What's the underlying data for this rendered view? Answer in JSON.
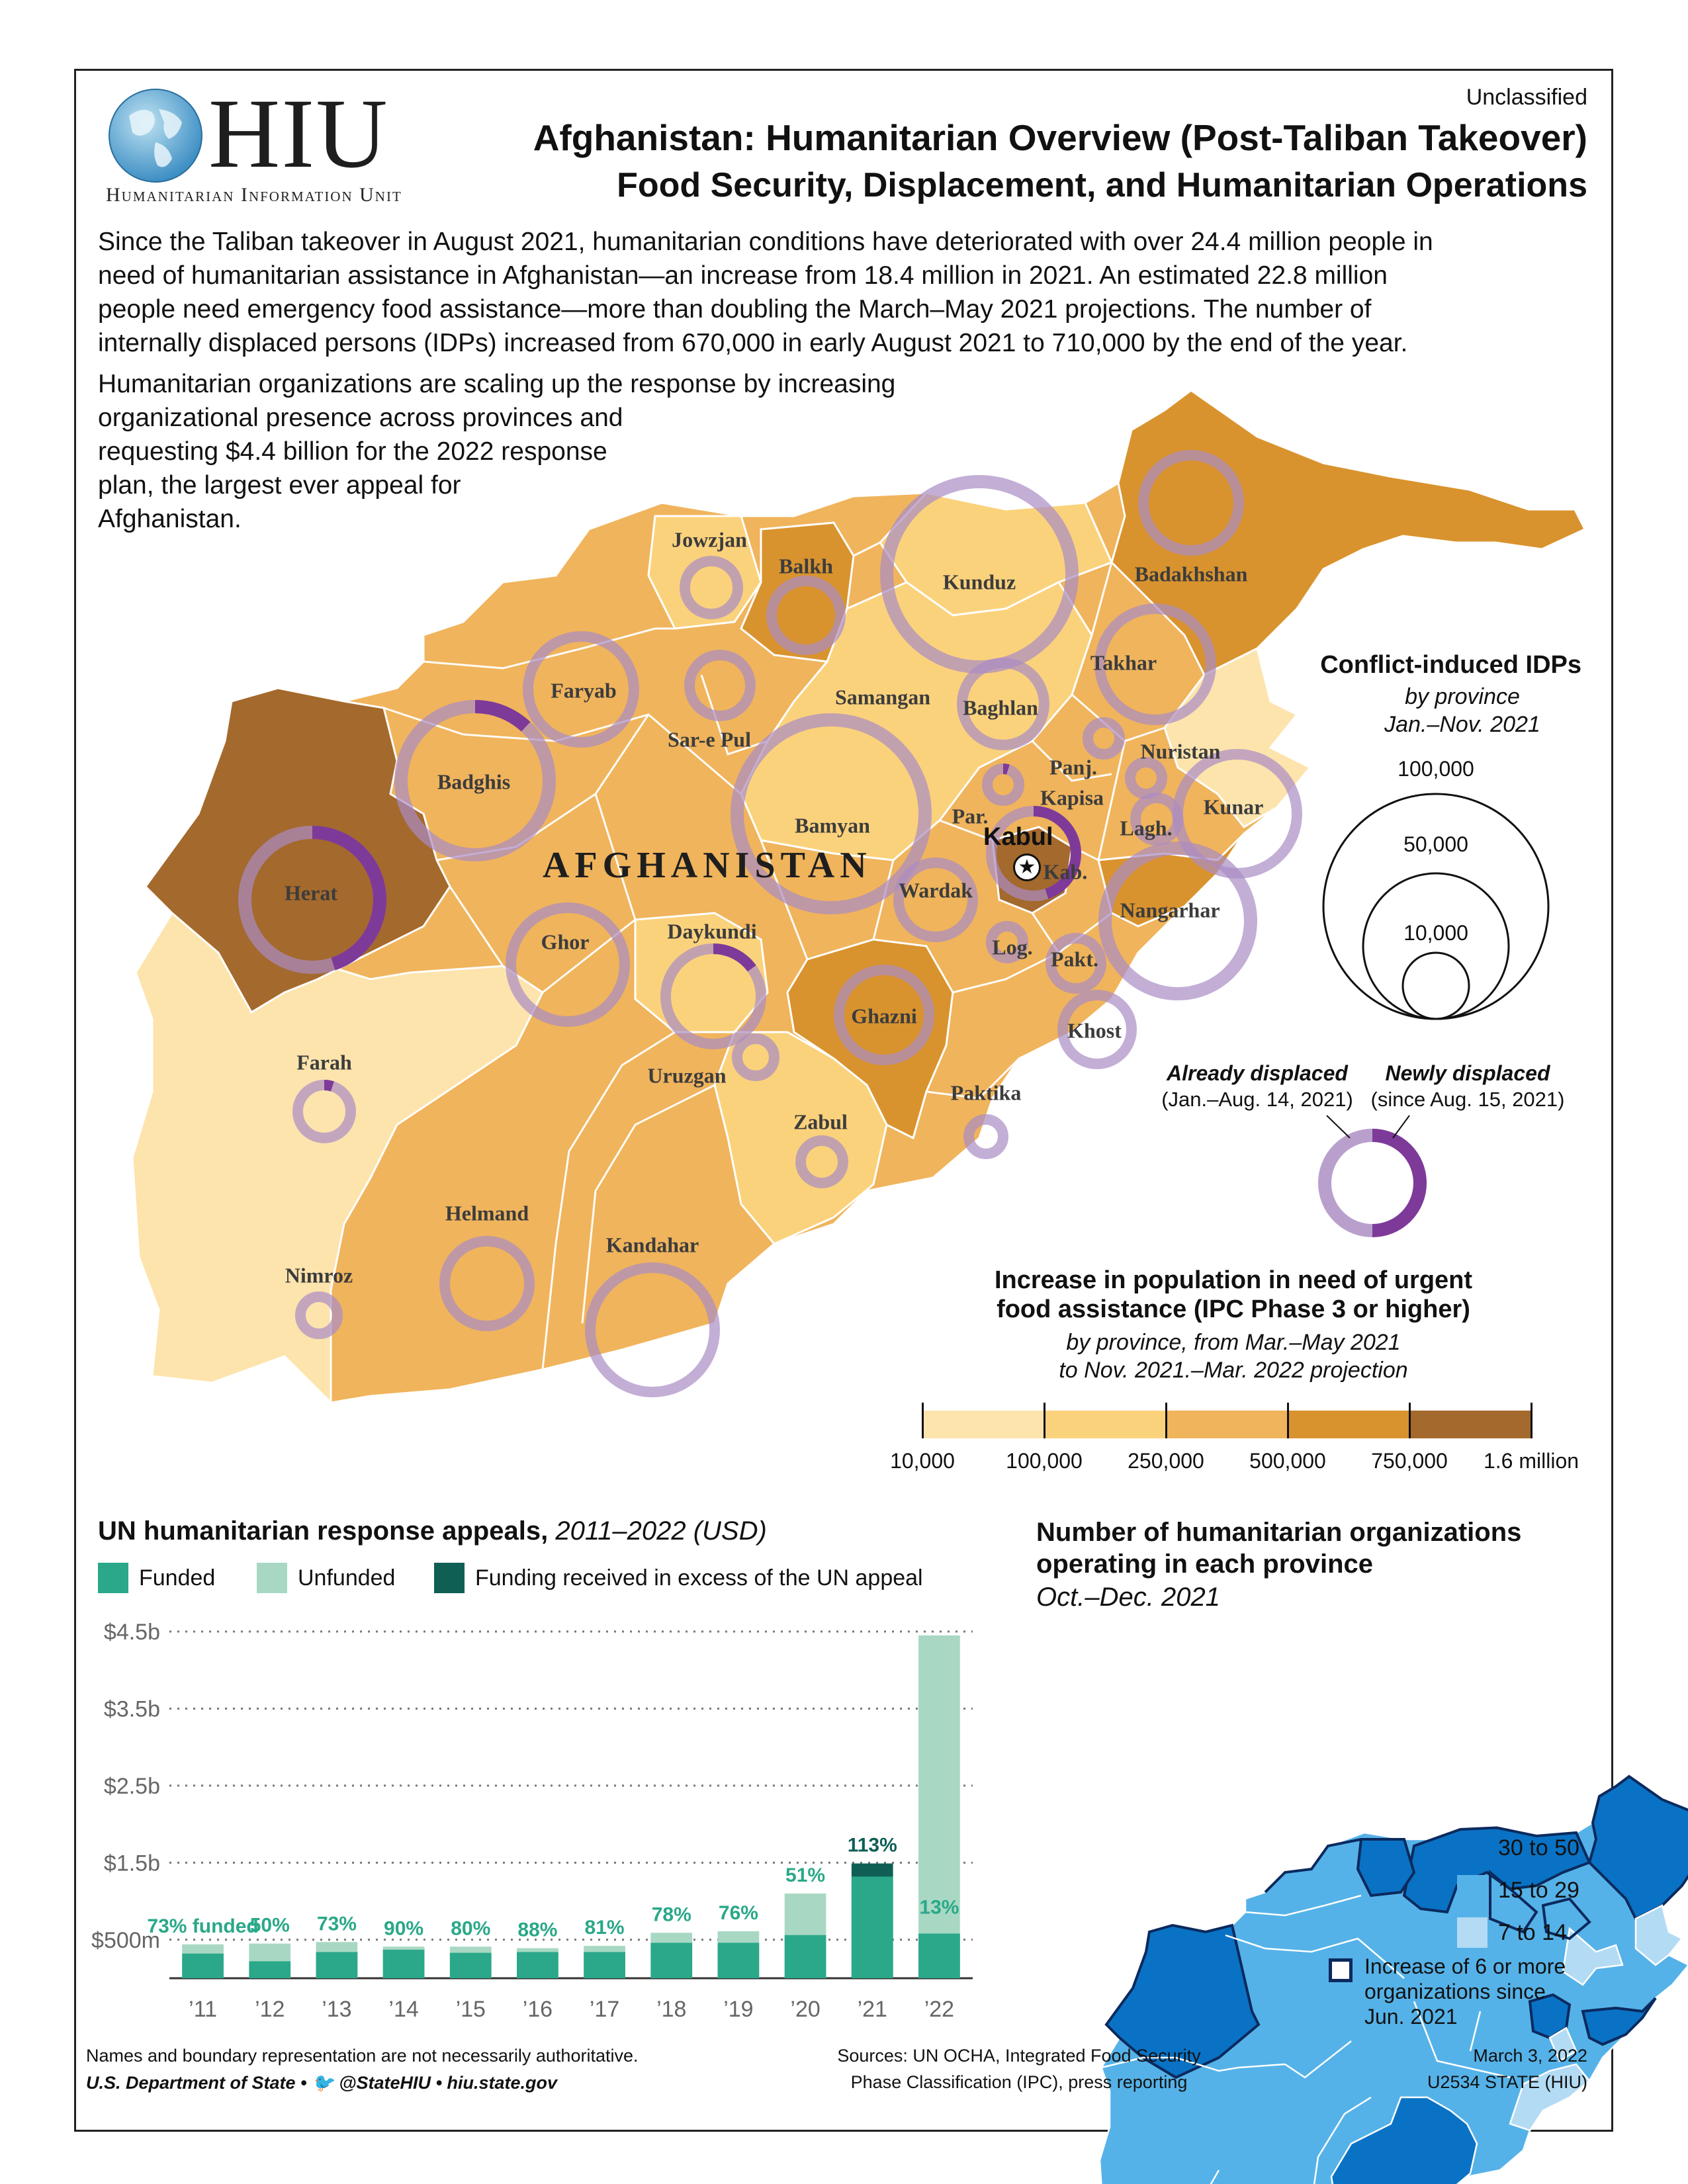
{
  "classification": "Unclassified",
  "logo": {
    "acronym": "HIU",
    "name": "Humanitarian Information Unit"
  },
  "title": "Afghanistan: Humanitarian Overview (Post-Taliban Takeover)",
  "subtitle": "Food Security, Displacement, and Humanitarian Operations",
  "intro_lines": [
    "Since the Taliban takeover in August 2021, humanitarian conditions have deteriorated with over 24.4 million people in",
    "need of humanitarian assistance in Afghanistan—an increase from 18.4 million in 2021. An estimated 22.8 million",
    "people need emergency food assistance—more than doubling the March–May 2021 projections. The number of",
    "internally displaced persons (IDPs) increased from 670,000 in early August 2021 to 710,000 by the end of the year.",
    "Humanitarian organizations are scaling up the response by increasing",
    "organizational presence across provinces and",
    "requesting $4.4 billion for the 2022 response",
    "plan, the largest ever appeal for",
    "Afghanistan."
  ],
  "map": {
    "country_label": "AFGHANISTAN",
    "capital": "Kabul",
    "provinces": [
      "Jowzjan",
      "Balkh",
      "Kunduz",
      "Badakhshan",
      "Faryab",
      "Samangan",
      "Baghlan",
      "Takhar",
      "Sar-e Pul",
      "Badghis",
      "Panj.",
      "Nuristan",
      "Kapisa",
      "Bamyan",
      "Par.",
      "Kunar",
      "Lagh.",
      "Kab.",
      "Herat",
      "Wardak",
      "Nangarhar",
      "Ghor",
      "Daykundi",
      "Log.",
      "Pakt.",
      "Ghazni",
      "Khost",
      "Farah",
      "Uruzgan",
      "Paktika",
      "Zabul",
      "Helmand",
      "Kandahar",
      "Nimroz"
    ]
  },
  "idp_legend": {
    "title": "Conflict-induced IDPs",
    "sub1": "by province",
    "sub2": "Jan.–Nov. 2021",
    "sizes": [
      "100,000",
      "50,000",
      "10,000"
    ],
    "already_label": "Already displaced",
    "already_period": "(Jan.–Aug. 14, 2021)",
    "newly_label": "Newly displaced",
    "newly_period": "(since Aug. 15, 2021)"
  },
  "ipc_legend": {
    "title1": "Increase in population in need of urgent",
    "title2": "food assistance (IPC Phase 3 or higher)",
    "sub1": "by province, from Mar.–May 2021",
    "sub2": "to Nov. 2021.–Mar. 2022 projection",
    "breaks": [
      "10,000",
      "100,000",
      "250,000",
      "500,000",
      "750,000",
      "1.6 million"
    ],
    "colors": [
      "#fde4ad",
      "#fbd27c",
      "#f0b45c",
      "#d9932e",
      "#a4692c"
    ]
  },
  "chart_data": {
    "type": "bar",
    "title": "UN humanitarian response appeals,",
    "title_italic": "2011–2022 (USD)",
    "legend": [
      "Funded",
      "Unfunded",
      "Funding received in excess of the UN appeal"
    ],
    "colors": {
      "funded": "#2aa889",
      "unfunded": "#a8d8c3",
      "excess": "#0f5f55"
    },
    "categories": [
      "’11",
      "’12",
      "’13",
      "’14",
      "’15",
      "’16",
      "’17",
      "’18",
      "’19",
      "’20",
      "’21",
      "’22"
    ],
    "appeal": [
      0.44,
      0.45,
      0.47,
      0.41,
      0.41,
      0.39,
      0.42,
      0.59,
      0.61,
      1.1,
      1.32,
      4.45
    ],
    "funded": [
      0.32,
      0.22,
      0.34,
      0.37,
      0.33,
      0.34,
      0.34,
      0.46,
      0.46,
      0.56,
      1.49,
      0.58
    ],
    "labels": [
      "73% funded",
      "50%",
      "73%",
      "90%",
      "80%",
      "88%",
      "81%",
      "78%",
      "76%",
      "51%",
      "113%",
      "13%"
    ],
    "yticks": [
      "$500m",
      "$1.5b",
      "$2.5b",
      "$3.5b",
      "$4.5b"
    ],
    "ytick_values": [
      0.5,
      1.5,
      2.5,
      3.5,
      4.5
    ],
    "ylim": [
      0,
      4.5
    ]
  },
  "orgs_map": {
    "title1": "Number of humanitarian organizations",
    "title2": "operating in each province",
    "period": "Oct.–Dec. 2021",
    "legend": [
      {
        "label": "30 to 50",
        "color": "#0a72c4"
      },
      {
        "label": "15 to 29",
        "color": "#55b2e8"
      },
      {
        "label": "7 to 14",
        "color": "#b3dbf4"
      }
    ],
    "increase_label": [
      "Increase of 6 or more",
      "organizations since",
      "Jun. 2021"
    ]
  },
  "footer": {
    "note": "Names and boundary representation are not necessarily authoritative.",
    "dept": "U.S. Department of State",
    "twitter": "@StateHIU",
    "site": "hiu.state.gov",
    "sources1": "Sources: UN OCHA, Integrated Food Security",
    "sources2": "Phase Classification (IPC), press reporting",
    "date": "March 3, 2022",
    "code": "U2534 STATE (HIU)"
  }
}
